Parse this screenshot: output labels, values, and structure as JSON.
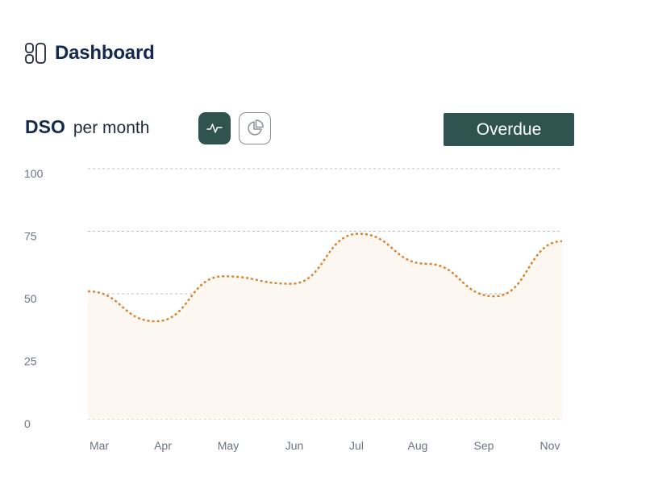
{
  "header": {
    "title": "Dashboard",
    "icon": "dashboard-layout-icon"
  },
  "chart_header": {
    "metric": "DSO",
    "period": "per month"
  },
  "view_toggle": {
    "line_icon": "activity-line-icon",
    "pie_icon": "pie-chart-icon",
    "selected": "line"
  },
  "filter_button": {
    "label": "Overdue"
  },
  "colors": {
    "accent": "#2f5450",
    "title": "#14294f",
    "series_line": "#d9822b",
    "series_fill": "#fdf7f1",
    "grid": "#b9bcc2",
    "tick_text": "#6b7385"
  },
  "chart_data": {
    "type": "area",
    "title": "",
    "xlabel": "",
    "ylabel": "",
    "categories": [
      "Mar",
      "Apr",
      "May",
      "Jun",
      "Jul",
      "Aug",
      "Sep",
      "Nov"
    ],
    "values": [
      51,
      39,
      57,
      54,
      74,
      62,
      49,
      71
    ],
    "ylim": [
      0,
      100
    ],
    "yticks": [
      0,
      25,
      50,
      75,
      100
    ],
    "grid": true,
    "line_style": "dotted",
    "smooth": true
  }
}
